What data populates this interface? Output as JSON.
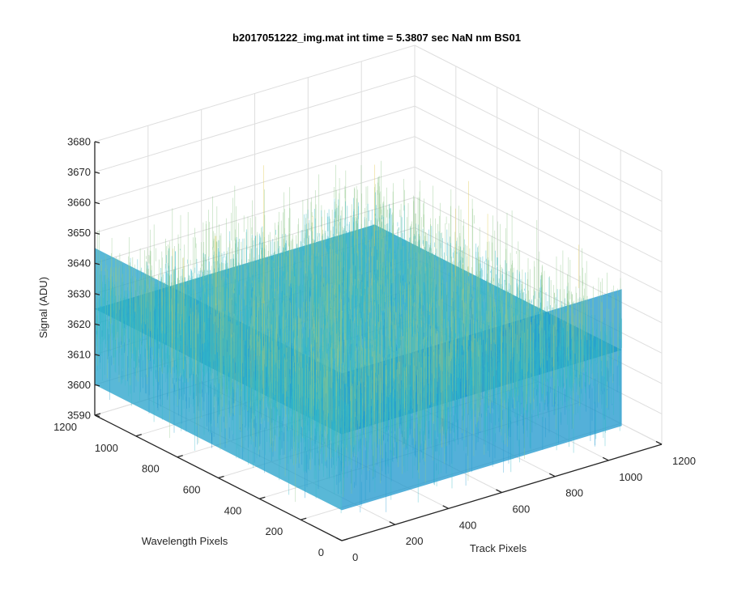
{
  "chart_data": {
    "type": "surface3d",
    "title": "b2017051222_img.mat int time = 5.3807 sec  NaN nm BS01",
    "xlabel": "Track Pixels",
    "ylabel": "Wavelength Pixels",
    "zlabel": "Signal (ADU)",
    "xlim": [
      0,
      1200
    ],
    "ylim": [
      0,
      1200
    ],
    "zlim": [
      3590,
      3680
    ],
    "x_ticks": [
      "0",
      "200",
      "400",
      "600",
      "800",
      "1000",
      "1200"
    ],
    "y_ticks": [
      "0",
      "200",
      "400",
      "600",
      "800",
      "1000",
      "1200"
    ],
    "z_ticks": [
      "3590",
      "3600",
      "3610",
      "3620",
      "3630",
      "3640",
      "3650",
      "3660",
      "3670",
      "3680"
    ],
    "grid": true,
    "colormap": [
      "#0072bd",
      "#1f9ad0",
      "#33b8c8",
      "#8fc78a",
      "#e0c84a"
    ],
    "surface": {
      "x_range": [
        0,
        1050
      ],
      "y_range": [
        0,
        1200
      ],
      "mean_signal": 3625,
      "noise_min": 3595,
      "noise_max": 3665
    }
  }
}
